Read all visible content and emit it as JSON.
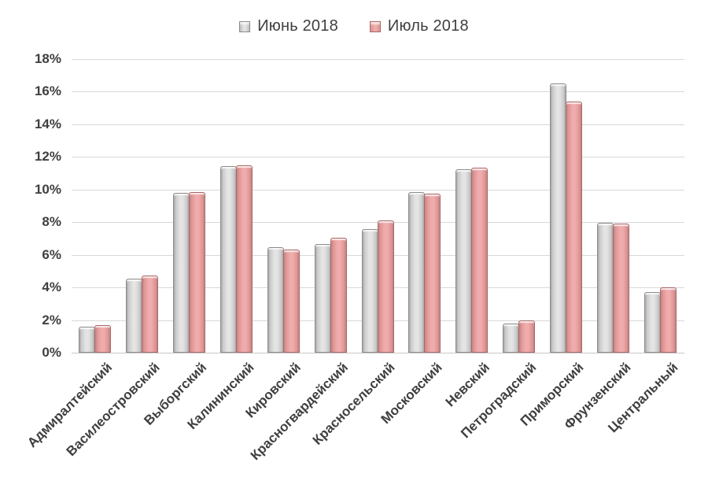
{
  "colors": {
    "text": "#3f3f3f",
    "gridline": "#d8d8d8",
    "axis_line": "#c9c9c9",
    "background": "#ffffff"
  },
  "legend": {
    "items": [
      {
        "label": "Июнь 2018"
      },
      {
        "label": "Июль 2018"
      }
    ]
  },
  "chart_data": {
    "type": "bar",
    "title": "",
    "xlabel": "",
    "ylabel": "",
    "grid": true,
    "legend_position": "top-center",
    "ylim": [
      0,
      18
    ],
    "ytick_step": 2,
    "ytick_suffix": "%",
    "categories": [
      "Адмиралтейский",
      "Василеостровский",
      "Выборгский",
      "Калининский",
      "Кировский",
      "Красногвардейский",
      "Красносельский",
      "Московский",
      "Невский",
      "Петроградский",
      "Приморский",
      "Фрунзенский",
      "Центральный"
    ],
    "series": [
      {
        "name": "Июнь 2018",
        "values": [
          1.6,
          4.55,
          9.8,
          11.45,
          6.45,
          6.65,
          7.6,
          9.85,
          11.25,
          1.8,
          16.5,
          7.95,
          3.7
        ],
        "color_center": "#e4e4e4",
        "color_mid": "#c9c9c9",
        "color_edge": "#9a9a9a",
        "color_border": "#8b8b8b"
      },
      {
        "name": "Июль 2018",
        "values": [
          1.7,
          4.75,
          9.85,
          11.5,
          6.3,
          7.05,
          8.1,
          9.75,
          11.35,
          2.0,
          15.4,
          7.9,
          4.0
        ],
        "color_center": "#f0acac",
        "color_mid": "#dd9494",
        "color_edge": "#b87474",
        "color_border": "#a96666"
      }
    ]
  }
}
